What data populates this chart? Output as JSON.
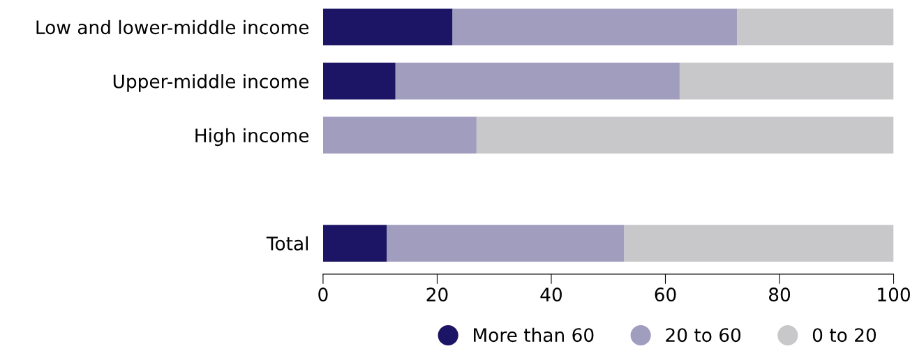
{
  "chart_data": {
    "type": "bar",
    "orientation": "horizontal",
    "stacked": true,
    "categories": [
      "Low and lower-middle income",
      "Upper-middle income",
      "High income",
      null,
      "Total"
    ],
    "series": [
      {
        "name": "More than 60",
        "color": "#1c1464",
        "values": [
          22.7,
          12.7,
          0,
          null,
          11.2
        ]
      },
      {
        "name": "20 to 60",
        "color": "#a19dbf",
        "values": [
          49.9,
          49.8,
          26.9,
          null,
          41.6
        ]
      },
      {
        "name": "0 to 20",
        "color": "#c8c8ca",
        "values": [
          27.4,
          37.5,
          73.1,
          null,
          47.2
        ]
      }
    ],
    "xlim": [
      0,
      100
    ],
    "xticks": [
      0,
      20,
      40,
      60,
      80,
      100
    ],
    "grid": false,
    "legend": "bottom right"
  }
}
